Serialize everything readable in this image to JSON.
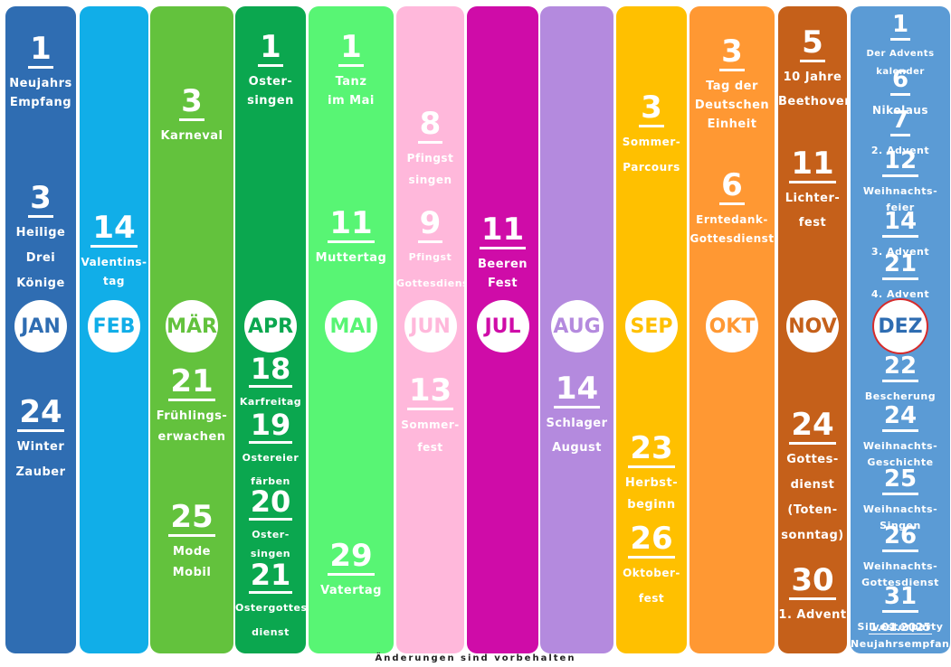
{
  "footer": "Änderungen sind vorbehalten",
  "months": [
    {
      "label": "JAN",
      "color": "#2f6db2",
      "events": [
        {
          "day": "1",
          "lines": [
            "Neujahrs",
            "Empfang"
          ]
        },
        {
          "day": "3",
          "lines": [
            "Heilige",
            "Drei",
            "Könige"
          ]
        },
        {
          "day": "24",
          "lines": [
            "Winter",
            "Zauber"
          ]
        }
      ]
    },
    {
      "label": "FEB",
      "color": "#11aee8",
      "events": [
        {
          "day": "14",
          "lines": [
            "Valentins-",
            "tag"
          ]
        }
      ]
    },
    {
      "label": "MÄR",
      "color": "#63c23d",
      "events": [
        {
          "day": "3",
          "lines": [
            "Karneval"
          ]
        },
        {
          "day": "21",
          "lines": [
            "Frühlings-",
            "erwachen"
          ]
        },
        {
          "day": "25",
          "lines": [
            "Mode",
            "Mobil"
          ]
        }
      ]
    },
    {
      "label": "APR",
      "color": "#0ba74f",
      "events": [
        {
          "day": "1",
          "lines": [
            "Oster-",
            "singen"
          ]
        },
        {
          "day": "18",
          "lines": [
            "Karfreitag"
          ]
        },
        {
          "day": "19",
          "lines": [
            "Ostereier",
            "färben"
          ]
        },
        {
          "day": "20",
          "lines": [
            "Oster-",
            "singen"
          ]
        },
        {
          "day": "21",
          "lines": [
            "Ostergottes-",
            "dienst"
          ]
        }
      ]
    },
    {
      "label": "MAI",
      "color": "#58f574",
      "events": [
        {
          "day": "1",
          "lines": [
            "Tanz",
            "im Mai"
          ]
        },
        {
          "day": "11",
          "lines": [
            "Muttertag"
          ]
        },
        {
          "day": "29",
          "lines": [
            "Vatertag"
          ]
        }
      ]
    },
    {
      "label": "JUN",
      "color": "#ffb8db",
      "events": [
        {
          "day": "8",
          "lines": [
            "Pfingst",
            "singen"
          ]
        },
        {
          "day": "9",
          "lines": [
            "Pfingst",
            "Gottesdienst"
          ]
        },
        {
          "day": "13",
          "lines": [
            "Sommer-",
            "fest"
          ]
        }
      ]
    },
    {
      "label": "JUL",
      "color": "#cf0ca8",
      "events": [
        {
          "day": "11",
          "lines": [
            "Beeren",
            "Fest"
          ]
        }
      ]
    },
    {
      "label": "AUG",
      "color": "#b48ade",
      "events": [
        {
          "day": "14",
          "lines": [
            "Schlager",
            "August"
          ]
        }
      ]
    },
    {
      "label": "SEP",
      "color": "#ffc000",
      "events": [
        {
          "day": "3",
          "lines": [
            "Sommer-",
            "Parcours"
          ]
        },
        {
          "day": "23",
          "lines": [
            "Herbst-",
            "beginn"
          ]
        },
        {
          "day": "26",
          "lines": [
            "Oktober-",
            "fest"
          ]
        }
      ]
    },
    {
      "label": "OKT",
      "color": "#ff9833",
      "events": [
        {
          "day": "3",
          "lines": [
            "Tag der",
            "Deutschen",
            "Einheit"
          ]
        },
        {
          "day": "6",
          "lines": [
            "Erntedank-",
            "Gottesdienst"
          ]
        }
      ]
    },
    {
      "label": "NOV",
      "color": "#c5601a",
      "events": [
        {
          "day": "5",
          "lines": [
            "10 Jahre",
            "Beethoven"
          ]
        },
        {
          "day": "11",
          "lines": [
            "Lichter-",
            "fest"
          ]
        },
        {
          "day": "24",
          "lines": [
            "Gottes-",
            "dienst",
            "(Toten-",
            "sonntag)"
          ]
        },
        {
          "day": "30",
          "lines": [
            "1. Advent"
          ]
        }
      ]
    },
    {
      "label": "DEZ",
      "color": "#5b9bd5",
      "badge_border": "#d62b2b",
      "badge_text": "#2f6db2",
      "events": [
        {
          "day": "1",
          "lines": [
            "Der Advents",
            "kalender"
          ]
        },
        {
          "day": "6",
          "lines": [
            "Nikolaus"
          ]
        },
        {
          "day": "7",
          "lines": [
            "2. Advent"
          ]
        },
        {
          "day": "12",
          "lines": [
            "Weihnachts-",
            "feier"
          ]
        },
        {
          "day": "14",
          "lines": [
            "3. Advent"
          ]
        },
        {
          "day": "21",
          "lines": [
            "4. Advent"
          ]
        },
        {
          "day": "22",
          "lines": [
            "Bescherung"
          ]
        },
        {
          "day": "24",
          "lines": [
            "Weihnachts-",
            "Geschichte"
          ]
        },
        {
          "day": "25",
          "lines": [
            "Weihnachts-",
            "Singen"
          ]
        },
        {
          "day": "26",
          "lines": [
            "Weihnachts-",
            "Gottesdienst"
          ]
        },
        {
          "day": "31",
          "lines": [
            "Silvesterparty"
          ]
        },
        {
          "day": "1.01.2025",
          "lines": [
            "Neujahrsempfang"
          ]
        }
      ]
    }
  ]
}
